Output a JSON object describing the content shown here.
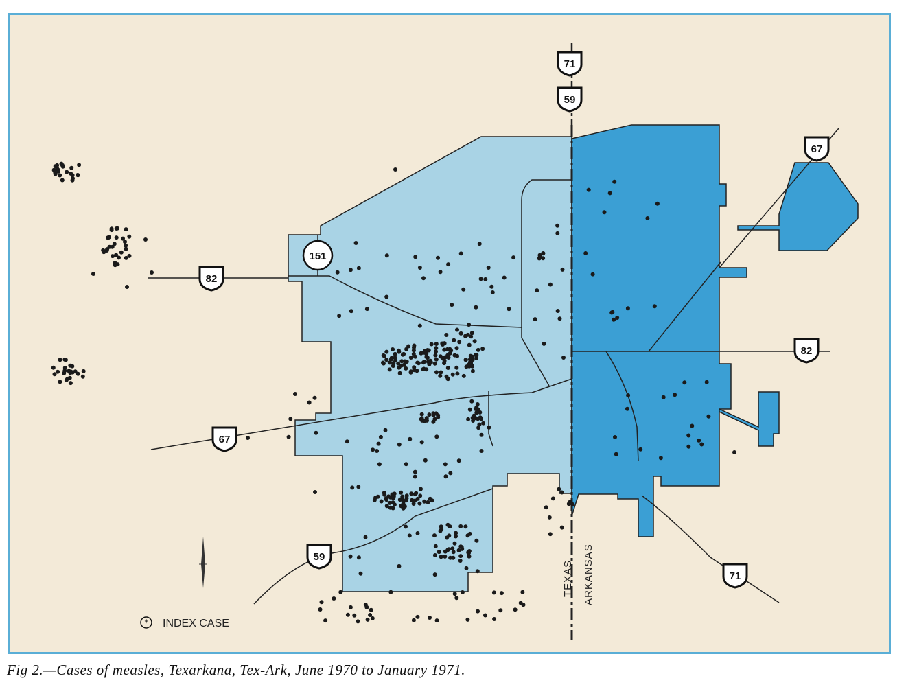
{
  "caption": "Fig 2.—Cases of measles, Texarkana, Tex-Ark, June 1970 to January 1971.",
  "legend": {
    "label": "INDEX CASE",
    "icon": "asterisk-circle-icon"
  },
  "states": {
    "west": "TEXAS",
    "east": "ARKANSAS"
  },
  "routes": [
    {
      "id": "us-71-north",
      "number": "71"
    },
    {
      "id": "us-59-north",
      "number": "59"
    },
    {
      "id": "us-67-northeast",
      "number": "67"
    },
    {
      "id": "us-82-west",
      "number": "82"
    },
    {
      "id": "tx-151",
      "number": "151"
    },
    {
      "id": "us-82-east",
      "number": "82"
    },
    {
      "id": "us-67-southwest",
      "number": "67"
    },
    {
      "id": "us-59-southwest",
      "number": "59"
    },
    {
      "id": "us-71-southeast",
      "number": "71"
    }
  ],
  "colors": {
    "background": "#f3ead8",
    "texas_area": "#a9d3e5",
    "arkansas_area": "#3b9fd4",
    "frame": "#5aaed6",
    "case_dot": "#1a1a1a"
  },
  "compass": "north-arrow-icon"
}
